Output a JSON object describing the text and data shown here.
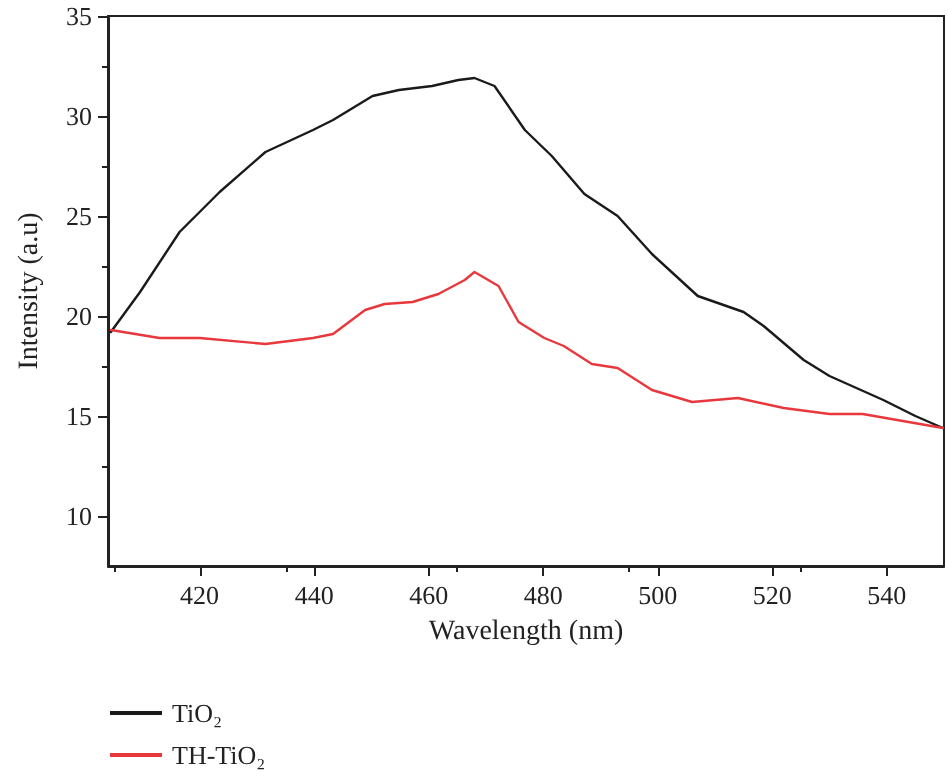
{
  "chart_data": {
    "type": "line",
    "xlabel": "Wavelength (nm)",
    "ylabel": "Intensity (a.u)",
    "xlim": [
      404,
      550
    ],
    "xticks": [
      420,
      440,
      460,
      480,
      500,
      520,
      540
    ],
    "ylim": [
      7.5,
      35
    ],
    "yticks": [
      10,
      15,
      20,
      25,
      30,
      35
    ],
    "grid": false,
    "legend": "bottom",
    "marker": "none",
    "line_style": "solid",
    "series": [
      {
        "name": "TiO₂",
        "color": "#1a1a1a",
        "x": [
          404.5,
          409.6,
          416.5,
          423.5,
          431.5,
          439.8,
          443.3,
          450.2,
          454.8,
          460.6,
          465.2,
          468,
          471.5,
          476.8,
          481.5,
          487.2,
          493,
          499,
          507,
          515,
          518.5,
          525.5,
          530,
          539.4,
          545,
          549.8
        ],
        "values": [
          19.2,
          21.2,
          24.2,
          26.2,
          28.2,
          29.3,
          29.8,
          31.0,
          31.3,
          31.5,
          31.8,
          31.9,
          31.5,
          29.3,
          28.0,
          26.1,
          25.0,
          23.1,
          21.0,
          20.2,
          19.5,
          17.8,
          17.0,
          15.8,
          15.0,
          14.4
        ]
      },
      {
        "name": "TH-TiO₂",
        "color": "#e8383d",
        "x": [
          404.5,
          413,
          420,
          431.5,
          439.8,
          443.3,
          448.9,
          452.3,
          457.2,
          461.7,
          466.3,
          468,
          472.2,
          475.7,
          480.2,
          483.6,
          488.5,
          493,
          499,
          506,
          514,
          522,
          530,
          535.8,
          549.8
        ],
        "values": [
          19.3,
          18.9,
          18.9,
          18.6,
          18.9,
          19.1,
          20.3,
          20.6,
          20.7,
          21.1,
          21.8,
          22.2,
          21.5,
          19.7,
          18.9,
          18.5,
          17.6,
          17.4,
          16.3,
          15.7,
          15.9,
          15.4,
          15.1,
          15.1,
          14.4
        ]
      }
    ]
  }
}
